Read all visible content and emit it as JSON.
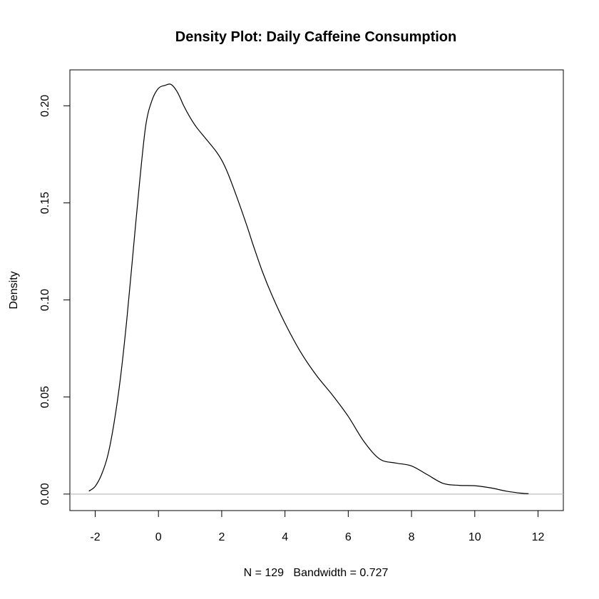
{
  "chart_data": {
    "type": "line",
    "title": "Density Plot: Daily Caffeine Consumption",
    "xlabel": "N = 129   Bandwidth = 0.727",
    "ylabel": "Density",
    "xlim": [
      -2.8,
      12.8
    ],
    "ylim": [
      -0.0085,
      0.2185
    ],
    "x_ticks": [
      -2,
      0,
      2,
      4,
      6,
      8,
      10,
      12
    ],
    "x_tick_labels": [
      "-2",
      "0",
      "2",
      "4",
      "6",
      "8",
      "10",
      "12"
    ],
    "y_ticks": [
      0.0,
      0.05,
      0.1,
      0.15,
      0.2
    ],
    "y_tick_labels": [
      "0.00",
      "0.05",
      "0.10",
      "0.15",
      "0.20"
    ],
    "baseline_y": 0,
    "baseline_color": "#bebebe",
    "line_color": "#000000",
    "series": [
      {
        "name": "density",
        "x": [
          -2.2,
          -2.0,
          -1.8,
          -1.6,
          -1.4,
          -1.2,
          -1.0,
          -0.8,
          -0.6,
          -0.4,
          -0.2,
          0.0,
          0.2,
          0.4,
          0.6,
          0.8,
          1.0,
          1.2,
          1.5,
          1.8,
          2.0,
          2.2,
          2.5,
          2.8,
          3.0,
          3.3,
          3.6,
          4.0,
          4.5,
          5.0,
          5.5,
          6.0,
          6.5,
          7.0,
          7.5,
          8.0,
          8.5,
          9.0,
          9.5,
          10.0,
          10.5,
          11.0,
          11.5,
          11.7
        ],
        "y": [
          0.0015,
          0.004,
          0.01,
          0.02,
          0.037,
          0.06,
          0.09,
          0.125,
          0.16,
          0.19,
          0.203,
          0.209,
          0.2105,
          0.211,
          0.207,
          0.2,
          0.194,
          0.189,
          0.183,
          0.177,
          0.172,
          0.165,
          0.152,
          0.138,
          0.128,
          0.114,
          0.102,
          0.088,
          0.073,
          0.061,
          0.051,
          0.04,
          0.027,
          0.018,
          0.016,
          0.0145,
          0.01,
          0.0055,
          0.0045,
          0.0043,
          0.0032,
          0.0015,
          0.0004,
          0.0002
        ]
      }
    ]
  }
}
